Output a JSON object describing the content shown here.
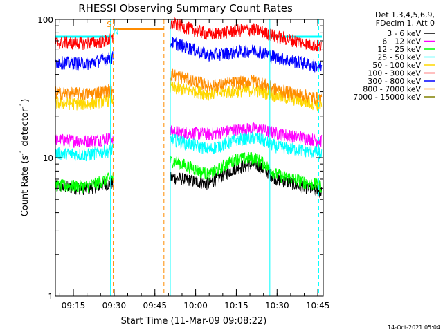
{
  "chart_data": {
    "type": "line",
    "title": "RHESSI Observing Summary Count Rates",
    "xlabel": "Start Time (11-Mar-09 09:08:22)",
    "ylabel": "Count Rate (s⁻¹ detector⁻¹)",
    "ylabel_parts": [
      "Count Rate (s",
      "-1",
      " detector",
      "-1",
      ")"
    ],
    "y_scale": "log",
    "ylim": [
      1,
      100
    ],
    "y_ticks": [
      {
        "value": 1,
        "label": "1"
      },
      {
        "value": 10,
        "label": "10"
      },
      {
        "value": 100,
        "label": "100"
      }
    ],
    "xlim": [
      "09:08:22",
      "10:47:00"
    ],
    "x_ticks": [
      "09:15",
      "09:30",
      "09:45",
      "10:00",
      "10:15",
      "10:30",
      "10:45"
    ],
    "legend_header": [
      "Det 1,3,4,5,6,9,",
      "FDecim 1, Att 0"
    ],
    "legend_placement": "right",
    "footer": "14-Oct-2021 05:04",
    "gap": [
      "09:29:40",
      "09:50:40"
    ],
    "series": [
      {
        "name": "3 - 6 keV",
        "color": "#000000",
        "points": [
          [
            "09:08:22",
            6.2
          ],
          [
            "09:20:00",
            6.0
          ],
          [
            "09:27:30",
            6.5
          ],
          [
            "09:51:40",
            7.2
          ],
          [
            "10:05:00",
            6.5
          ],
          [
            "10:15:00",
            8.5
          ],
          [
            "10:22:00",
            9.0
          ],
          [
            "10:30:00",
            7.0
          ],
          [
            "10:46:30",
            5.6
          ]
        ]
      },
      {
        "name": "6 - 12 keV",
        "color": "#ff00ff",
        "points": [
          [
            "09:08:22",
            13.5
          ],
          [
            "09:20:00",
            13.2
          ],
          [
            "09:27:30",
            13.8
          ],
          [
            "09:51:40",
            15.5
          ],
          [
            "10:05:00",
            14.8
          ],
          [
            "10:15:00",
            16.0
          ],
          [
            "10:22:00",
            16.2
          ],
          [
            "10:30:00",
            15.0
          ],
          [
            "10:46:30",
            13.2
          ]
        ]
      },
      {
        "name": "12 - 25 keV",
        "color": "#00ff00",
        "points": [
          [
            "09:08:22",
            6.3
          ],
          [
            "09:20:00",
            6.2
          ],
          [
            "09:27:30",
            7.0
          ],
          [
            "09:51:40",
            9.5
          ],
          [
            "10:05:00",
            7.5
          ],
          [
            "10:15:00",
            9.8
          ],
          [
            "10:22:00",
            10.0
          ],
          [
            "10:30:00",
            7.5
          ],
          [
            "10:46:30",
            6.2
          ]
        ]
      },
      {
        "name": "25 - 50 keV",
        "color": "#00ffff",
        "points": [
          [
            "09:08:22",
            10.8
          ],
          [
            "09:20:00",
            10.5
          ],
          [
            "09:27:30",
            11.2
          ],
          [
            "09:51:40",
            13.5
          ],
          [
            "10:05:00",
            11.5
          ],
          [
            "10:15:00",
            13.5
          ],
          [
            "10:22:00",
            14.0
          ],
          [
            "10:30:00",
            12.0
          ],
          [
            "10:46:30",
            10.8
          ]
        ]
      },
      {
        "name": "50 - 100 keV",
        "color": "#ffd700",
        "points": [
          [
            "09:08:22",
            25.0
          ],
          [
            "09:20:00",
            24.5
          ],
          [
            "09:27:30",
            26.0
          ],
          [
            "09:51:40",
            32.0
          ],
          [
            "10:05:00",
            29.0
          ],
          [
            "10:15:00",
            30.5
          ],
          [
            "10:22:00",
            31.0
          ],
          [
            "10:30:00",
            28.0
          ],
          [
            "10:46:30",
            24.0
          ]
        ]
      },
      {
        "name": "100 - 300 keV",
        "color": "#ff0000",
        "points": [
          [
            "09:08:22",
            68.0
          ],
          [
            "09:20:00",
            67.5
          ],
          [
            "09:27:30",
            70.0
          ],
          [
            "09:51:40",
            93.0
          ],
          [
            "10:05:00",
            78.0
          ],
          [
            "10:15:00",
            83.0
          ],
          [
            "10:22:00",
            85.0
          ],
          [
            "10:30:00",
            75.0
          ],
          [
            "10:46:30",
            63.0
          ]
        ]
      },
      {
        "name": "300 - 800 keV",
        "color": "#0000ff",
        "points": [
          [
            "09:08:22",
            49.0
          ],
          [
            "09:20:00",
            48.0
          ],
          [
            "09:27:30",
            52.0
          ],
          [
            "09:51:40",
            68.0
          ],
          [
            "10:05:00",
            55.0
          ],
          [
            "10:15:00",
            58.0
          ],
          [
            "10:22:00",
            60.0
          ],
          [
            "10:30:00",
            53.0
          ],
          [
            "10:46:30",
            45.0
          ]
        ]
      },
      {
        "name": "800 - 7000 keV",
        "color": "#ff8c00",
        "points": [
          [
            "09:08:22",
            29.5
          ],
          [
            "09:20:00",
            29.0
          ],
          [
            "09:27:30",
            30.5
          ],
          [
            "09:51:40",
            40.0
          ],
          [
            "10:05:00",
            33.0
          ],
          [
            "10:15:00",
            35.0
          ],
          [
            "10:22:00",
            36.0
          ],
          [
            "10:30:00",
            31.0
          ],
          [
            "10:46:30",
            26.5
          ]
        ]
      },
      {
        "name": "7000 - 15000 keV",
        "color": "#808000",
        "points": []
      }
    ],
    "markers": [
      {
        "time": "09:28:40",
        "color": "#00ffff",
        "style": "solid",
        "label": ""
      },
      {
        "time": "09:29:40",
        "color": "#ff8c00",
        "style": "dashed",
        "label": ""
      },
      {
        "time": "09:48:20",
        "color": "#ff8c00",
        "style": "dashed",
        "label": ""
      },
      {
        "time": "09:50:40",
        "color": "#00ffff",
        "style": "solid",
        "label": ""
      },
      {
        "time": "10:27:20",
        "color": "#00ffff",
        "style": "solid",
        "label": ""
      },
      {
        "time": "10:45:20",
        "color": "#00ffff",
        "style": "dashed",
        "label": ""
      }
    ],
    "flag_bars": [
      {
        "color": "#00ffff",
        "y": 75,
        "start": "09:08:22",
        "end": "09:29:00"
      },
      {
        "color": "#ff8c00",
        "y": 85,
        "start": "09:29:40",
        "end": "09:48:20"
      },
      {
        "color": "#00ffff",
        "y": 75,
        "start": "10:27:20",
        "end": "10:46:30"
      }
    ],
    "flag_labels": [
      {
        "text": "S",
        "color": "#ff8c00",
        "time": "09:28:10",
        "y": 88
      },
      {
        "text": "N",
        "color": "#00ffff",
        "time": "09:30:40",
        "y": 78
      }
    ]
  }
}
